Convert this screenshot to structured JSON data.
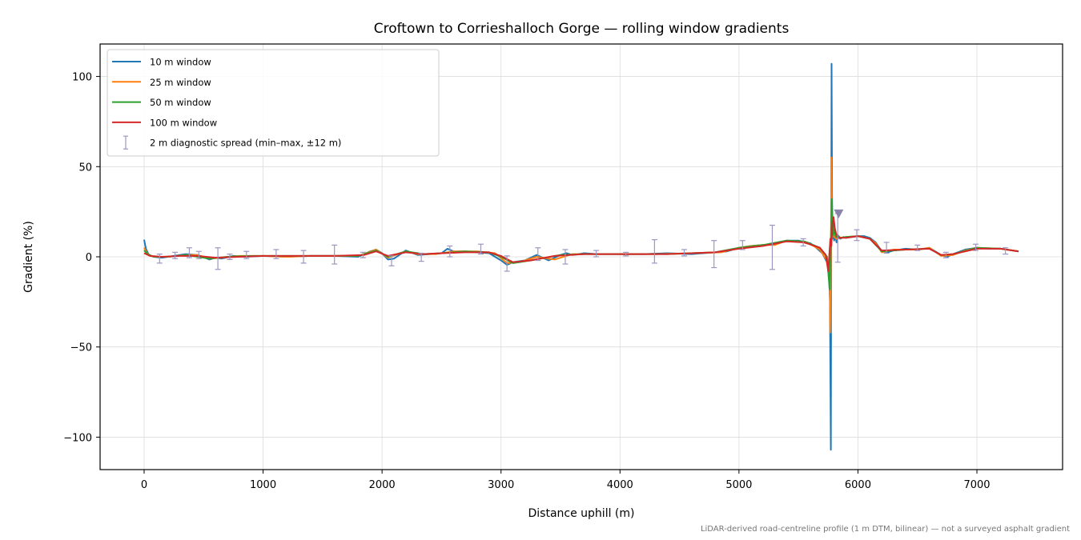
{
  "chart_data": {
    "type": "line",
    "title": "Croftown to Corrieshalloch Gorge — rolling window gradients",
    "xlabel": "Distance uphill (m)",
    "ylabel": "Gradient (%)",
    "xlim": [
      -370,
      7720
    ],
    "ylim": [
      -118,
      118
    ],
    "xticks": [
      0,
      1000,
      2000,
      3000,
      4000,
      5000,
      6000,
      7000
    ],
    "xtick_labels": [
      "0",
      "1000",
      "2000",
      "3000",
      "4000",
      "5000",
      "6000",
      "7000"
    ],
    "yticks": [
      -100,
      -50,
      0,
      50,
      100
    ],
    "ytick_labels": [
      "−100",
      "−50",
      "0",
      "50",
      "100"
    ],
    "grid": true,
    "legend_position": "top-left",
    "series": [
      {
        "name": "10 m window",
        "color": "#1f77b4",
        "x": [
          0,
          15,
          40,
          80,
          150,
          250,
          350,
          450,
          550,
          600,
          650,
          750,
          850,
          1000,
          1200,
          1400,
          1600,
          1800,
          1900,
          1950,
          2000,
          2050,
          2100,
          2200,
          2300,
          2400,
          2500,
          2550,
          2600,
          2700,
          2800,
          2900,
          3000,
          3050,
          3100,
          3200,
          3300,
          3400,
          3500,
          3550,
          3600,
          3700,
          3800,
          4000,
          4200,
          4400,
          4600,
          4800,
          4900,
          5000,
          5100,
          5200,
          5300,
          5400,
          5500,
          5600,
          5650,
          5700,
          5740,
          5755,
          5765,
          5772,
          5778,
          5782,
          5786,
          5790,
          5795,
          5800,
          5810,
          5820,
          5830,
          5850,
          5880,
          5900,
          5950,
          6000,
          6050,
          6100,
          6150,
          6200,
          6250,
          6300,
          6400,
          6500,
          6600,
          6700,
          6750,
          6800,
          6900,
          7000,
          7100,
          7200,
          7300,
          7350
        ],
        "y": [
          9.5,
          4.5,
          1.0,
          0.0,
          -0.5,
          0.5,
          1.5,
          1.0,
          -1.5,
          -0.5,
          -1.0,
          0.5,
          0.0,
          0.5,
          0.0,
          0.5,
          0.5,
          0.0,
          3.0,
          4.0,
          2.0,
          -1.5,
          -1.0,
          3.5,
          1.0,
          1.5,
          2.0,
          4.5,
          3.0,
          3.0,
          2.5,
          2.0,
          -2.0,
          -4.5,
          -3.0,
          -2.0,
          1.0,
          -2.0,
          1.0,
          2.0,
          1.0,
          2.0,
          1.5,
          1.5,
          1.5,
          2.0,
          1.5,
          2.5,
          3.0,
          5.0,
          6.0,
          6.5,
          7.0,
          9.0,
          9.0,
          7.5,
          5.0,
          2.0,
          -3.0,
          -5.0,
          -25.0,
          -107.0,
          107.0,
          35.0,
          10.0,
          20.0,
          15.0,
          9.0,
          12.0,
          8.0,
          12.0,
          10.0,
          11.0,
          10.5,
          11.0,
          11.5,
          11.5,
          10.5,
          8.0,
          3.0,
          2.5,
          3.5,
          4.5,
          4.0,
          5.0,
          1.0,
          0.0,
          1.5,
          4.0,
          5.0,
          4.5,
          4.5,
          3.5,
          3.0
        ]
      },
      {
        "name": "25 m window",
        "color": "#ff7f0e",
        "x": [
          0,
          20,
          50,
          100,
          200,
          350,
          450,
          550,
          650,
          800,
          1000,
          1200,
          1400,
          1600,
          1800,
          1950,
          2050,
          2200,
          2300,
          2450,
          2600,
          2800,
          2950,
          3050,
          3150,
          3300,
          3450,
          3600,
          3800,
          4000,
          4300,
          4600,
          4850,
          5000,
          5100,
          5200,
          5300,
          5400,
          5500,
          5600,
          5680,
          5730,
          5760,
          5770,
          5776,
          5782,
          5790,
          5800,
          5820,
          5850,
          5900,
          6000,
          6100,
          6150,
          6200,
          6300,
          6500,
          6600,
          6700,
          6800,
          6900,
          7000,
          7200,
          7350
        ],
        "y": [
          5.0,
          2.5,
          0.5,
          0.0,
          0.0,
          1.0,
          1.0,
          -1.0,
          -0.5,
          0.5,
          0.5,
          0.0,
          0.5,
          0.5,
          0.5,
          4.0,
          -0.5,
          3.0,
          1.5,
          1.5,
          3.0,
          3.0,
          2.0,
          -3.5,
          -3.0,
          0.0,
          -1.5,
          1.5,
          1.5,
          1.5,
          1.5,
          2.0,
          2.5,
          5.0,
          6.0,
          6.5,
          6.5,
          9.0,
          8.5,
          7.0,
          4.0,
          -1.0,
          -5.0,
          -42.0,
          55.0,
          10.0,
          16.0,
          11.0,
          10.0,
          10.5,
          11.0,
          11.5,
          10.0,
          7.5,
          2.5,
          4.0,
          4.0,
          5.0,
          0.5,
          1.0,
          3.5,
          5.0,
          4.5,
          3.0
        ]
      },
      {
        "name": "50 m window",
        "color": "#2ca02c",
        "x": [
          0,
          30,
          80,
          200,
          350,
          550,
          700,
          900,
          1200,
          1500,
          1800,
          1950,
          2050,
          2200,
          2350,
          2500,
          2700,
          2900,
          3000,
          3100,
          3250,
          3500,
          3700,
          4000,
          4400,
          4800,
          5000,
          5200,
          5400,
          5550,
          5680,
          5740,
          5762,
          5772,
          5780,
          5790,
          5800,
          5815,
          5830,
          5850,
          5900,
          6000,
          6100,
          6200,
          6400,
          6600,
          6700,
          6800,
          7000,
          7200,
          7350
        ],
        "y": [
          3.5,
          1.5,
          0.0,
          0.0,
          1.0,
          -1.0,
          0.0,
          0.5,
          0.5,
          0.5,
          0.5,
          3.5,
          0.0,
          3.0,
          1.5,
          2.0,
          3.0,
          2.5,
          0.0,
          -3.5,
          -2.0,
          1.0,
          1.5,
          1.5,
          1.5,
          2.5,
          5.0,
          6.5,
          9.0,
          8.5,
          5.0,
          0.0,
          -18.0,
          10.0,
          32.0,
          12.0,
          15.0,
          11.0,
          12.0,
          10.5,
          11.0,
          11.5,
          10.0,
          3.0,
          4.0,
          4.5,
          1.0,
          1.5,
          5.0,
          4.5,
          3.0
        ]
      },
      {
        "name": "100 m window",
        "color": "#d62728",
        "x": [
          0,
          50,
          150,
          300,
          450,
          600,
          800,
          1000,
          1300,
          1600,
          1850,
          1950,
          2050,
          2200,
          2350,
          2500,
          2700,
          2900,
          3000,
          3100,
          3250,
          3450,
          3700,
          4000,
          4400,
          4800,
          5000,
          5200,
          5400,
          5550,
          5680,
          5730,
          5750,
          5760,
          5768,
          5776,
          5785,
          5795,
          5805,
          5815,
          5830,
          5850,
          5900,
          6000,
          6100,
          6200,
          6400,
          6600,
          6700,
          6800,
          7000,
          7200,
          7350
        ],
        "y": [
          2.0,
          0.5,
          0.0,
          0.5,
          0.5,
          -0.5,
          0.0,
          0.5,
          0.5,
          0.5,
          1.0,
          3.0,
          0.5,
          2.5,
          1.5,
          2.0,
          2.5,
          2.5,
          0.5,
          -3.0,
          -2.0,
          0.5,
          1.5,
          1.5,
          1.5,
          2.5,
          4.5,
          6.0,
          8.5,
          8.0,
          5.0,
          1.0,
          -8.0,
          2.0,
          10.0,
          6.0,
          18.0,
          22.0,
          16.0,
          13.0,
          11.0,
          10.5,
          10.5,
          11.5,
          10.0,
          3.5,
          4.0,
          4.5,
          1.0,
          1.5,
          4.5,
          4.5,
          3.0
        ]
      }
    ],
    "error_bars": {
      "name": "2 m diagnostic spread (min–max, ±12 m)",
      "color": "#9d96c0",
      "points": [
        {
          "x": 130,
          "y": -1.0,
          "low": -3.5,
          "high": 1.5
        },
        {
          "x": 260,
          "y": 0.5,
          "low": -1.0,
          "high": 2.5
        },
        {
          "x": 380,
          "y": 2.0,
          "low": -0.5,
          "high": 5.0
        },
        {
          "x": 460,
          "y": 1.0,
          "low": -1.0,
          "high": 3.0
        },
        {
          "x": 620,
          "y": -1.0,
          "low": -7.0,
          "high": 5.0
        },
        {
          "x": 720,
          "y": 0.0,
          "low": -1.5,
          "high": 1.5
        },
        {
          "x": 860,
          "y": 1.0,
          "low": -1.0,
          "high": 3.0
        },
        {
          "x": 1110,
          "y": 1.5,
          "low": -1.0,
          "high": 4.0
        },
        {
          "x": 1340,
          "y": 0.5,
          "low": -3.5,
          "high": 3.5
        },
        {
          "x": 1600,
          "y": 1.0,
          "low": -4.0,
          "high": 6.5
        },
        {
          "x": 1840,
          "y": 1.0,
          "low": -0.5,
          "high": 2.5
        },
        {
          "x": 2080,
          "y": -2.0,
          "low": -5.0,
          "high": 0.5
        },
        {
          "x": 2330,
          "y": 0.0,
          "low": -2.5,
          "high": 2.0
        },
        {
          "x": 2570,
          "y": 3.0,
          "low": 0.0,
          "high": 6.0
        },
        {
          "x": 2830,
          "y": 4.0,
          "low": 1.5,
          "high": 7.0
        },
        {
          "x": 3050,
          "y": -3.0,
          "low": -8.0,
          "high": 0.5
        },
        {
          "x": 3310,
          "y": 2.0,
          "low": -2.0,
          "high": 5.0
        },
        {
          "x": 3540,
          "y": 0.0,
          "low": -4.0,
          "high": 4.0
        },
        {
          "x": 3800,
          "y": 2.0,
          "low": 0.0,
          "high": 3.5
        },
        {
          "x": 4050,
          "y": 1.5,
          "low": 0.5,
          "high": 2.5
        },
        {
          "x": 4290,
          "y": 4.0,
          "low": -3.5,
          "high": 9.5
        },
        {
          "x": 4540,
          "y": 2.5,
          "low": 0.5,
          "high": 4.0
        },
        {
          "x": 4790,
          "y": 3.0,
          "low": -6.0,
          "high": 9.0
        },
        {
          "x": 5030,
          "y": 6.0,
          "low": 4.0,
          "high": 9.0
        },
        {
          "x": 5280,
          "y": 6.0,
          "low": -7.0,
          "high": 17.5
        },
        {
          "x": 5540,
          "y": 8.0,
          "low": 6.0,
          "high": 10.0
        },
        {
          "x": 5830,
          "y": 12.0,
          "low": -3.0,
          "high": 24.0
        },
        {
          "x": 5990,
          "y": 12.0,
          "low": 9.0,
          "high": 15.0
        },
        {
          "x": 6240,
          "y": 5.0,
          "low": 2.0,
          "high": 8.0
        },
        {
          "x": 6500,
          "y": 5.0,
          "low": 3.5,
          "high": 6.5
        },
        {
          "x": 6740,
          "y": 1.0,
          "low": -0.5,
          "high": 2.5
        },
        {
          "x": 6990,
          "y": 5.0,
          "low": 3.5,
          "high": 7.0
        },
        {
          "x": 7240,
          "y": 3.0,
          "low": 1.5,
          "high": 5.0
        }
      ],
      "marker": {
        "x": 5838,
        "y": 24.0,
        "shape": "down-triangle"
      }
    },
    "annotation": "LiDAR-derived road-centreline profile (1 m DTM, bilinear) — not a surveyed asphalt gradient"
  }
}
